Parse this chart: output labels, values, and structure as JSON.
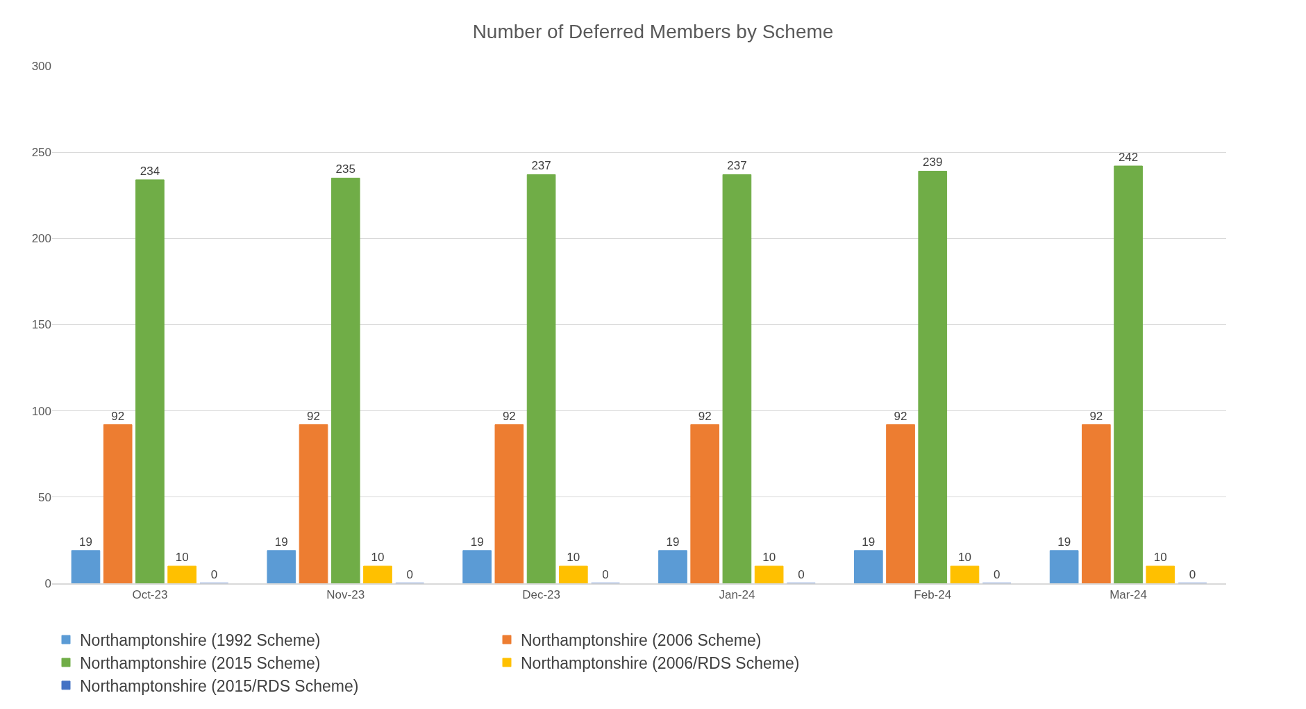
{
  "chart_data": {
    "type": "bar",
    "title": "Number of Deferred Members by Scheme",
    "categories": [
      "Oct-23",
      "Nov-23",
      "Dec-23",
      "Jan-24",
      "Feb-24",
      "Mar-24"
    ],
    "series": [
      {
        "name": "Northamptonshire (1992 Scheme)",
        "color": "#5b9bd5",
        "values": [
          19,
          19,
          19,
          19,
          19,
          19
        ]
      },
      {
        "name": "Northamptonshire (2006 Scheme)",
        "color": "#ed7d31",
        "values": [
          92,
          92,
          92,
          92,
          92,
          92
        ]
      },
      {
        "name": "Northamptonshire (2015 Scheme)",
        "color": "#70ad47",
        "values": [
          234,
          235,
          237,
          237,
          239,
          242
        ]
      },
      {
        "name": "Northamptonshire (2006/RDS Scheme)",
        "color": "#ffc000",
        "values": [
          10,
          10,
          10,
          10,
          10,
          10
        ]
      },
      {
        "name": "Northamptonshire (2015/RDS Scheme)",
        "color": "#4472c4",
        "values": [
          0,
          0,
          0,
          0,
          0,
          0
        ]
      }
    ],
    "ylim": [
      0,
      300
    ],
    "yticks": [
      0,
      50,
      100,
      150,
      200,
      250,
      300
    ],
    "grid": "y",
    "legend": "bottom",
    "data_labels": true
  }
}
